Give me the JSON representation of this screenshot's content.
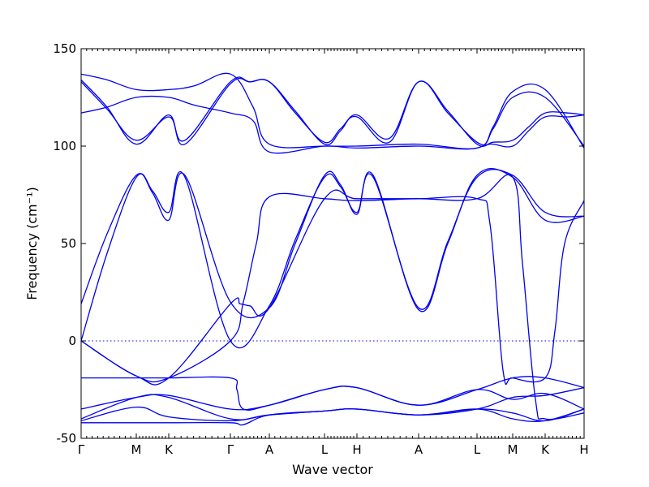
{
  "chart_data": {
    "type": "line",
    "title": "",
    "xlabel": "Wave vector",
    "ylabel": "Frequency (cm⁻¹)",
    "ylim": [
      -50,
      150
    ],
    "yticks": [
      -50,
      0,
      50,
      100,
      150
    ],
    "xlim": [
      0,
      15.5
    ],
    "grid": false,
    "reference_line": {
      "y": 0,
      "style": "dotted"
    },
    "high_symmetry_points": [
      {
        "label": "Γ",
        "x": 0
      },
      {
        "label": "M",
        "x": 1.7
      },
      {
        "label": "K",
        "x": 2.7
      },
      {
        "label": "Γ",
        "x": 4.6
      },
      {
        "label": "A",
        "x": 5.8
      },
      {
        "label": "L",
        "x": 7.5
      },
      {
        "label": "H",
        "x": 8.5
      },
      {
        "label": "A",
        "x": 10.4
      },
      {
        "label": "L",
        "x": 12.2
      },
      {
        "label": "M",
        "x": 13.3
      },
      {
        "label": "K",
        "x": 14.3
      },
      {
        "label": "H",
        "x": 15.5
      }
    ],
    "minor_ticks_per_segment": 9,
    "color": "#0000ee",
    "series": [
      {
        "x": [
          0,
          0.8,
          1.7,
          2.7,
          3.2,
          4.6,
          5.2,
          5.8,
          6.6,
          7.5,
          8.0,
          8.5,
          9.5,
          10.4,
          11.3,
          12.2,
          12.7,
          13.3,
          13.8,
          14.3,
          15.0,
          15.5
        ],
        "values": [
          134,
          120,
          101,
          116,
          101,
          132,
          133,
          133,
          118,
          101,
          108,
          116,
          104,
          133,
          118,
          101,
          102,
          103,
          110,
          117,
          117,
          116
        ]
      },
      {
        "x": [
          0,
          0.8,
          1.7,
          2.7,
          3.2,
          4.6,
          5.2,
          5.8,
          6.6,
          7.5,
          8.0,
          8.5,
          9.5,
          10.4,
          11.3,
          12.2,
          12.7,
          13.3,
          13.8,
          14.3,
          15.0,
          15.5
        ],
        "values": [
          133,
          119,
          103,
          115,
          103,
          133,
          133,
          133,
          117,
          102,
          109,
          115,
          102,
          133,
          117,
          102,
          101,
          100,
          108,
          115,
          115,
          116
        ]
      },
      {
        "x": [
          0,
          0.8,
          1.7,
          2.7,
          3.5,
          4.6,
          5.3,
          5.8,
          7.5,
          8.5,
          10.4,
          12.2,
          12.7,
          13.3,
          14.3,
          15.5
        ],
        "values": [
          137,
          134,
          129,
          129,
          131,
          137,
          120,
          101,
          100,
          100,
          101,
          99,
          110,
          128,
          129,
          99
        ]
      },
      {
        "x": [
          0,
          0.8,
          1.7,
          2.7,
          3.5,
          4.6,
          5.3,
          5.8,
          7.5,
          8.5,
          10.4,
          12.2,
          12.7,
          13.3,
          14.3,
          15.5
        ],
        "values": [
          117,
          120,
          125,
          125,
          121,
          117,
          113,
          97,
          100,
          99,
          100,
          99,
          109,
          125,
          125,
          100
        ]
      },
      {
        "x": [
          0,
          0.8,
          1.7,
          2.2,
          2.7,
          3.2,
          4.6,
          5.8,
          6.6,
          7.5,
          8.0,
          8.5,
          9.0,
          10.4,
          11.3,
          12.2,
          13.3,
          14.3,
          15.5
        ],
        "values": [
          19,
          55,
          85,
          76,
          62,
          85,
          20,
          17,
          50,
          85,
          80,
          65,
          85,
          16,
          50,
          85,
          84,
          62,
          64
        ]
      },
      {
        "x": [
          0,
          0.8,
          1.7,
          2.2,
          2.7,
          3.2,
          4.6,
          5.8,
          6.6,
          7.5,
          8.0,
          8.5,
          9.0,
          10.4,
          11.3,
          12.2,
          13.3,
          14.3,
          15.5
        ],
        "values": [
          0,
          45,
          84,
          77,
          66,
          84,
          0,
          18,
          52,
          84,
          79,
          66,
          84,
          17,
          51,
          84,
          85,
          66,
          64
        ]
      },
      {
        "x": [
          0,
          1.7,
          2.7,
          4.6,
          4.9,
          5.2,
          5.8,
          7.5,
          8.5,
          10.4,
          12.2,
          13.3,
          13.6,
          14.0,
          14.3,
          15.5
        ],
        "values": [
          0,
          -18,
          -19,
          19,
          19,
          18,
          17,
          73,
          73,
          73,
          73,
          84,
          40,
          -30,
          -40,
          -37
        ]
      },
      {
        "x": [
          0,
          1.7,
          2.7,
          4.6,
          5.0,
          5.4,
          5.8,
          7.5,
          8.5,
          10.4,
          12.2,
          12.6,
          13.0,
          13.3,
          14.3,
          14.6,
          14.9,
          15.5
        ],
        "values": [
          0,
          -18,
          -19,
          0,
          20,
          50,
          74,
          73,
          72,
          73,
          73,
          60,
          -15,
          -19,
          -19,
          5,
          50,
          72
        ]
      },
      {
        "x": [
          0,
          1.7,
          2.7,
          4.6,
          4.8,
          5.0,
          5.8,
          7.5,
          8.5,
          10.4,
          12.2,
          13.3,
          14.3,
          15.5
        ],
        "values": [
          -19,
          -19,
          -19,
          -19,
          -25,
          -35,
          -33,
          -25,
          -24,
          -33,
          -25,
          -19,
          -19,
          -24
        ]
      },
      {
        "x": [
          0,
          1.7,
          2.7,
          4.6,
          5.8,
          7.5,
          8.5,
          10.4,
          12.2,
          13.3,
          14.3,
          15.5
        ],
        "values": [
          -35,
          -29,
          -28,
          -35,
          -33,
          -25,
          -24,
          -33,
          -25,
          -30,
          -27,
          -35
        ]
      },
      {
        "x": [
          0,
          1.7,
          2.7,
          4.6,
          5.8,
          7.5,
          8.5,
          10.4,
          12.2,
          13.3,
          14.3,
          15.5
        ],
        "values": [
          -40,
          -29,
          -29,
          -40,
          -38,
          -36,
          -35,
          -38,
          -35,
          -29,
          -28,
          -24
        ]
      },
      {
        "x": [
          0,
          1.7,
          2.7,
          4.6,
          5.8,
          7.5,
          8.5,
          10.4,
          12.2,
          13.3,
          14.3,
          15.5
        ],
        "values": [
          -41,
          -34,
          -39,
          -41,
          -38,
          -36,
          -35,
          -38,
          -35,
          -37,
          -41,
          -35
        ]
      },
      {
        "x": [
          0,
          1.7,
          2.7,
          4.6,
          5.0,
          5.8,
          7.5,
          8.5,
          10.4,
          12.2,
          13.3,
          14.3,
          15.5
        ],
        "values": [
          -42,
          -42,
          -42,
          -42,
          -43,
          -38,
          -36,
          -35,
          -38,
          -35,
          -40,
          -41,
          -35
        ]
      }
    ]
  }
}
